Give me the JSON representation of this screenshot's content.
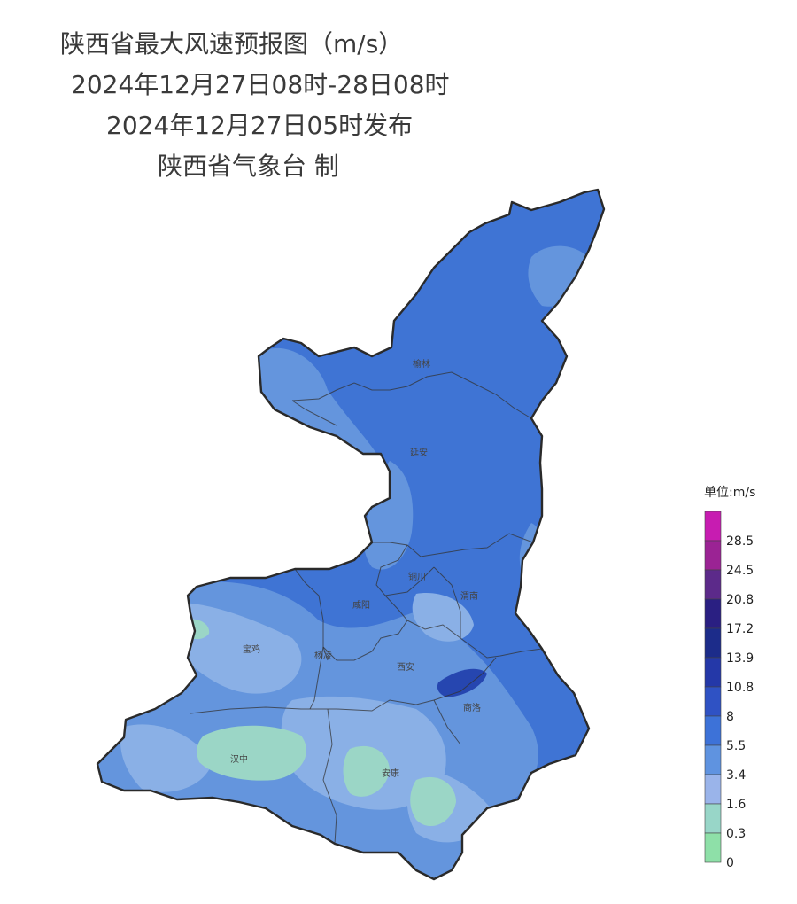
{
  "title": {
    "line1": "陕西省最大风速预报图（m/s）",
    "line2": "2024年12月27日08时-28日08时",
    "line3": "2024年12月27日05时发布",
    "line4": "陕西省气象台 制"
  },
  "cities": [
    "榆林",
    "延安",
    "铜川",
    "咸阳",
    "渭南",
    "宝鸡",
    "杨凌",
    "西安",
    "商洛",
    "汉中",
    "安康"
  ],
  "legend": {
    "unit_label": "单位:m/s",
    "labels": [
      "28.5",
      "24.5",
      "20.8",
      "17.2",
      "13.9",
      "10.8",
      "8",
      "5.5",
      "3.4",
      "1.6",
      "0.3",
      "0"
    ],
    "colors": [
      "#c71cb1",
      "#9b2394",
      "#5c2a8a",
      "#2a1f82",
      "#1c2c8a",
      "#2438a8",
      "#2f52c4",
      "#3d72d8",
      "#5f93e0",
      "#9ab4ea",
      "#98d6c8",
      "#8ee0a8"
    ]
  },
  "fill_colors": {
    "base": "#3f74d4",
    "light": "#6495dd",
    "lighter": "#8ab0e6",
    "green": "#9bd6c6",
    "dark": "#2646b0",
    "border": "#2a2a2a"
  }
}
